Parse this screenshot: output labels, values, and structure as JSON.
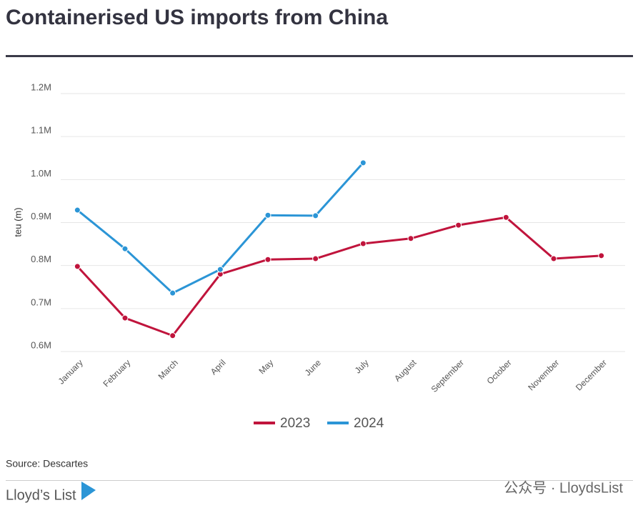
{
  "chart_data": {
    "type": "line",
    "title": "Containerised US imports from China",
    "ylabel": "teu (m)",
    "categories": [
      "January",
      "February",
      "March",
      "April",
      "May",
      "June",
      "July",
      "August",
      "September",
      "October",
      "November",
      "December"
    ],
    "series": [
      {
        "name": "2023",
        "color": "#c0143c",
        "values": [
          0.798,
          0.678,
          0.637,
          0.78,
          0.814,
          0.816,
          0.851,
          0.863,
          0.894,
          0.912,
          0.816,
          0.823
        ]
      },
      {
        "name": "2024",
        "color": "#2b95d6",
        "values": [
          0.929,
          0.839,
          0.736,
          0.791,
          0.917,
          0.916,
          1.039,
          null,
          null,
          null,
          null,
          null
        ]
      }
    ],
    "ylim": [
      0.6,
      1.2
    ],
    "yticks": [
      {
        "value": 0.6,
        "label": "0.6M"
      },
      {
        "value": 0.7,
        "label": "0.7M"
      },
      {
        "value": 0.8,
        "label": "0.8M"
      },
      {
        "value": 0.9,
        "label": "0.9M"
      },
      {
        "value": 1.0,
        "label": "1.0M"
      },
      {
        "value": 1.1,
        "label": "1.1M"
      },
      {
        "value": 1.2,
        "label": "1.2M"
      }
    ],
    "grid": true,
    "legend": "bottom"
  },
  "source": "Source: Descartes",
  "brand": "Lloyd’s List",
  "watermark": "公众号 · LloydsList"
}
